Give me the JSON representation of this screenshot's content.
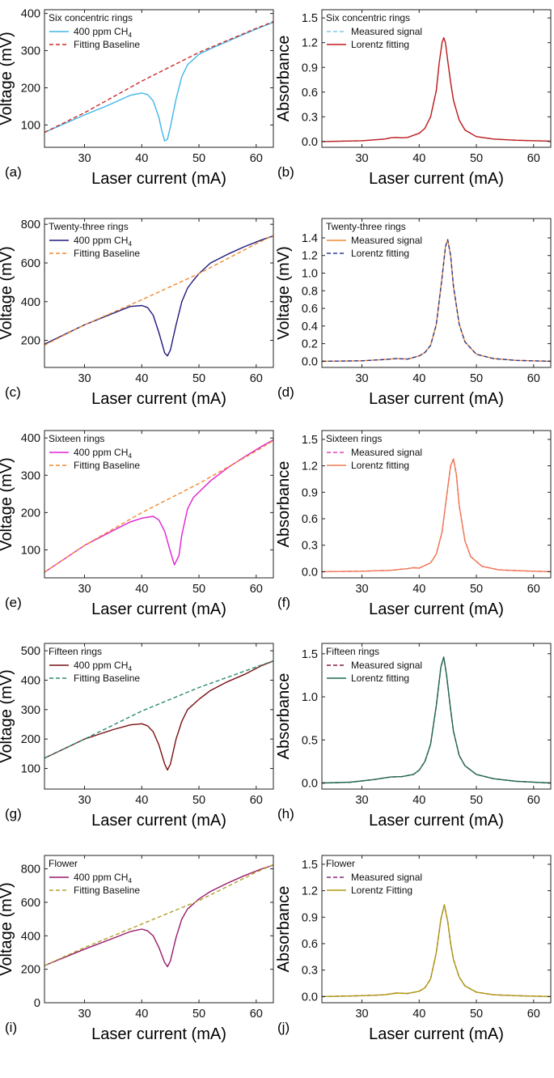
{
  "chart_data": [
    {
      "id": "a",
      "letter": "(a)",
      "type": "line",
      "title": "Six concentric rings",
      "xlabel": "Laser current (mA)",
      "ylabel": "Voltage (mV)",
      "xlim": [
        23,
        63
      ],
      "ylim": [
        40,
        410
      ],
      "xticks": [
        30,
        40,
        50,
        60
      ],
      "yticks": [
        100,
        200,
        300,
        400
      ],
      "series": [
        {
          "name": "400 ppm CH",
          "sub": "4",
          "color": "#3fb7e8",
          "dash": false,
          "x": [
            23,
            30,
            34,
            36,
            38,
            40,
            41,
            42,
            43,
            43.5,
            44,
            44.5,
            45,
            46,
            47,
            48,
            50,
            52,
            55,
            58,
            61,
            63
          ],
          "y": [
            80,
            127,
            152,
            166,
            180,
            186,
            182,
            165,
            120,
            85,
            57,
            62,
            95,
            170,
            230,
            262,
            290,
            305,
            325,
            345,
            364,
            376
          ]
        },
        {
          "name": "Fitting Baseline",
          "color": "#cc2a2a",
          "dash": true,
          "x": [
            23,
            30,
            40,
            50,
            60,
            63
          ],
          "y": [
            80,
            133,
            218,
            295,
            360,
            378
          ]
        }
      ]
    },
    {
      "id": "b",
      "letter": "(b)",
      "type": "line",
      "title": "Six concentric rings",
      "xlabel": "Laser current (mA)",
      "ylabel": "Absorbance",
      "xlim": [
        23,
        63
      ],
      "ylim": [
        -0.07,
        1.6
      ],
      "xticks": [
        30,
        40,
        50,
        60
      ],
      "yticks": [
        0.0,
        0.3,
        0.6,
        0.9,
        1.2,
        1.5
      ],
      "series": [
        {
          "name": "Measured signal",
          "color": "#7fc9ea",
          "dash": true,
          "x": [
            23,
            30,
            34,
            35,
            36,
            37,
            38,
            40,
            41,
            42,
            43,
            43.5,
            44,
            44.3,
            44.6,
            45,
            45.5,
            46,
            47,
            48,
            50,
            53,
            57,
            63
          ],
          "y": [
            0.0,
            0.01,
            0.03,
            0.045,
            0.05,
            0.045,
            0.05,
            0.1,
            0.16,
            0.3,
            0.62,
            0.95,
            1.2,
            1.26,
            1.2,
            0.98,
            0.72,
            0.5,
            0.26,
            0.14,
            0.06,
            0.03,
            0.015,
            0.005
          ]
        },
        {
          "name": "Lorentz fitting",
          "color": "#c11a1a",
          "dash": false,
          "x": [
            23,
            30,
            34,
            35,
            36,
            37,
            38,
            40,
            41,
            42,
            43,
            43.5,
            44,
            44.3,
            44.6,
            45,
            45.5,
            46,
            47,
            48,
            50,
            53,
            57,
            63
          ],
          "y": [
            0.0,
            0.01,
            0.03,
            0.045,
            0.05,
            0.045,
            0.05,
            0.1,
            0.16,
            0.3,
            0.62,
            0.95,
            1.2,
            1.26,
            1.2,
            0.98,
            0.72,
            0.5,
            0.26,
            0.14,
            0.06,
            0.03,
            0.015,
            0.005
          ]
        }
      ]
    },
    {
      "id": "c",
      "letter": "(c)",
      "type": "line",
      "title": "Twenty-three rings",
      "xlabel": "Laser current (mA)",
      "ylabel": "Voltage (mV)",
      "xlim": [
        23,
        63
      ],
      "ylim": [
        60,
        830
      ],
      "xticks": [
        30,
        40,
        50,
        60
      ],
      "yticks": [
        200,
        400,
        600,
        800
      ],
      "series": [
        {
          "name": "400 ppm CH",
          "sub": "4",
          "color": "#1f1a7a",
          "dash": false,
          "x": [
            23,
            30,
            35,
            38,
            40,
            41,
            42,
            43,
            44,
            44.5,
            45,
            46,
            47,
            48,
            49,
            50,
            52,
            55,
            58,
            61,
            63
          ],
          "y": [
            180,
            280,
            340,
            375,
            380,
            370,
            330,
            240,
            135,
            120,
            150,
            280,
            400,
            470,
            510,
            545,
            600,
            645,
            685,
            720,
            740
          ]
        },
        {
          "name": "Fitting Baseline",
          "color": "#f08a30",
          "dash": true,
          "x": [
            23,
            30,
            40,
            50,
            60,
            63
          ],
          "y": [
            175,
            280,
            410,
            545,
            700,
            742
          ]
        }
      ]
    },
    {
      "id": "d",
      "letter": "(d)",
      "type": "line",
      "title": "Twenty-three rings",
      "xlabel": "Laser current (mA)",
      "ylabel": "Voltage (mV)",
      "xlim": [
        23,
        63
      ],
      "ylim": [
        -0.07,
        1.62
      ],
      "xticks": [
        30,
        40,
        50,
        60
      ],
      "yticks": [
        0.0,
        0.2,
        0.4,
        0.6,
        0.8,
        1.0,
        1.2,
        1.4
      ],
      "series": [
        {
          "name": "Measured signal",
          "color": "#f08a30",
          "dash": false,
          "x": [
            23,
            30,
            34,
            36,
            38,
            40,
            41,
            42,
            43,
            44,
            44.6,
            45,
            45.5,
            46,
            47,
            48,
            50,
            53,
            57,
            63
          ],
          "y": [
            0.0,
            0.005,
            0.02,
            0.03,
            0.025,
            0.06,
            0.1,
            0.18,
            0.42,
            0.95,
            1.3,
            1.38,
            1.2,
            0.85,
            0.42,
            0.22,
            0.08,
            0.03,
            0.01,
            0.0
          ]
        },
        {
          "name": "Lorentz fitting",
          "color": "#2a3a9a",
          "dash": true,
          "x": [
            23,
            30,
            34,
            36,
            38,
            40,
            41,
            42,
            43,
            44,
            44.6,
            45,
            45.5,
            46,
            47,
            48,
            50,
            53,
            57,
            63
          ],
          "y": [
            0.0,
            0.005,
            0.02,
            0.03,
            0.025,
            0.06,
            0.1,
            0.18,
            0.42,
            0.95,
            1.3,
            1.38,
            1.2,
            0.85,
            0.42,
            0.22,
            0.08,
            0.03,
            0.01,
            0.0
          ]
        }
      ]
    },
    {
      "id": "e",
      "letter": "(e)",
      "type": "line",
      "title": "Sixteen rings",
      "xlabel": "Laser current (mA)",
      "ylabel": "Voltage (mV)",
      "xlim": [
        23,
        63
      ],
      "ylim": [
        25,
        420
      ],
      "xticks": [
        30,
        40,
        50,
        60
      ],
      "yticks": [
        100,
        200,
        300,
        400
      ],
      "series": [
        {
          "name": "400 ppm CH",
          "sub": "4",
          "color": "#e020d0",
          "dash": false,
          "x": [
            23,
            30,
            35,
            38,
            40,
            42,
            43,
            44,
            45,
            45.7,
            46.5,
            47,
            48,
            49,
            50,
            52,
            55,
            58,
            61,
            63
          ],
          "y": [
            40,
            112,
            152,
            175,
            185,
            190,
            180,
            150,
            95,
            60,
            85,
            140,
            210,
            240,
            255,
            285,
            320,
            350,
            378,
            395
          ]
        },
        {
          "name": "Fitting Baseline",
          "color": "#f08a30",
          "dash": true,
          "x": [
            23,
            30,
            40,
            50,
            60,
            63
          ],
          "y": [
            40,
            112,
            200,
            278,
            365,
            393
          ]
        }
      ]
    },
    {
      "id": "f",
      "letter": "(f)",
      "type": "line",
      "title": "Sixteen rings",
      "xlabel": "Laser current (mA)",
      "ylabel": "Absorbance",
      "xlim": [
        23,
        63
      ],
      "ylim": [
        -0.07,
        1.6
      ],
      "xticks": [
        30,
        40,
        50,
        60
      ],
      "yticks": [
        0.0,
        0.3,
        0.6,
        0.9,
        1.2,
        1.5
      ],
      "series": [
        {
          "name": "Measured signal",
          "color": "#e040c0",
          "dash": true,
          "x": [
            23,
            30,
            35,
            38,
            39,
            40,
            42,
            43,
            44,
            45,
            45.5,
            46,
            46.5,
            47,
            48,
            49,
            51,
            54,
            58,
            63
          ],
          "y": [
            0.0,
            0.005,
            0.015,
            0.035,
            0.045,
            0.04,
            0.1,
            0.2,
            0.45,
            0.95,
            1.2,
            1.28,
            1.1,
            0.75,
            0.35,
            0.17,
            0.06,
            0.02,
            0.01,
            0.0
          ]
        },
        {
          "name": "Lorentz fitting",
          "color": "#f07a50",
          "dash": false,
          "x": [
            23,
            30,
            35,
            38,
            39,
            40,
            42,
            43,
            44,
            45,
            45.5,
            46,
            46.5,
            47,
            48,
            49,
            51,
            54,
            58,
            63
          ],
          "y": [
            0.0,
            0.005,
            0.015,
            0.035,
            0.045,
            0.04,
            0.1,
            0.2,
            0.45,
            0.95,
            1.2,
            1.28,
            1.1,
            0.75,
            0.35,
            0.17,
            0.06,
            0.02,
            0.01,
            0.0
          ]
        }
      ]
    },
    {
      "id": "g",
      "letter": "(g)",
      "type": "line",
      "title": "Fifteen rings",
      "xlabel": "Laser current (mA)",
      "ylabel": "Voltage (mV)",
      "xlim": [
        23,
        63
      ],
      "ylim": [
        30,
        525
      ],
      "xticks": [
        30,
        40,
        50,
        60
      ],
      "yticks": [
        100,
        200,
        300,
        400,
        500
      ],
      "series": [
        {
          "name": "400 ppm CH",
          "sub": "4",
          "color": "#7a1010",
          "dash": false,
          "x": [
            23,
            30,
            35,
            38,
            40,
            41,
            42,
            43,
            44,
            44.5,
            45,
            46,
            47,
            48,
            50,
            52,
            55,
            58,
            61,
            63
          ],
          "y": [
            135,
            200,
            232,
            248,
            252,
            245,
            225,
            180,
            115,
            95,
            115,
            200,
            260,
            300,
            335,
            365,
            395,
            420,
            450,
            465
          ]
        },
        {
          "name": "Fitting Baseline",
          "color": "#2a8a70",
          "dash": true,
          "x": [
            23,
            30,
            40,
            50,
            60,
            63
          ],
          "y": [
            135,
            200,
            295,
            375,
            445,
            466
          ]
        }
      ]
    },
    {
      "id": "h",
      "letter": "(h)",
      "type": "line",
      "title": "Fifteen rings",
      "xlabel": "Laser current (mA)",
      "ylabel": "Absorbance",
      "xlim": [
        23,
        63
      ],
      "ylim": [
        -0.07,
        1.62
      ],
      "xticks": [
        30,
        40,
        50,
        60
      ],
      "yticks": [
        0.0,
        0.5,
        1.0,
        1.5
      ],
      "series": [
        {
          "name": "Measured signal",
          "color": "#8a1a3a",
          "dash": true,
          "x": [
            23,
            28,
            32,
            35,
            37,
            39,
            40,
            41,
            42,
            43,
            43.8,
            44.3,
            44.8,
            45.5,
            46,
            47,
            48,
            50,
            53,
            57,
            63
          ],
          "y": [
            0.0,
            0.01,
            0.04,
            0.07,
            0.075,
            0.1,
            0.15,
            0.25,
            0.45,
            0.9,
            1.35,
            1.46,
            1.25,
            0.85,
            0.6,
            0.32,
            0.2,
            0.1,
            0.05,
            0.02,
            0.0
          ]
        },
        {
          "name": "Lorentz fitting",
          "color": "#1f6a55",
          "dash": false,
          "x": [
            23,
            28,
            32,
            35,
            37,
            39,
            40,
            41,
            42,
            43,
            43.8,
            44.3,
            44.8,
            45.5,
            46,
            47,
            48,
            50,
            53,
            57,
            63
          ],
          "y": [
            0.0,
            0.01,
            0.04,
            0.07,
            0.075,
            0.1,
            0.15,
            0.25,
            0.45,
            0.9,
            1.35,
            1.46,
            1.25,
            0.85,
            0.6,
            0.32,
            0.2,
            0.1,
            0.05,
            0.02,
            0.0
          ]
        }
      ]
    },
    {
      "id": "i",
      "letter": "(i)",
      "type": "line",
      "title": "Flower",
      "xlabel": "Laser current (mA)",
      "ylabel": "Voltage (mV)",
      "xlim": [
        23,
        63
      ],
      "ylim": [
        0,
        880
      ],
      "xticks": [
        30,
        40,
        50,
        60
      ],
      "yticks": [
        0,
        200,
        400,
        600,
        800
      ],
      "series": [
        {
          "name": "400 ppm CH",
          "sub": "4",
          "color": "#9a1a6a",
          "dash": false,
          "x": [
            23,
            30,
            35,
            38,
            40,
            41,
            42,
            43,
            44,
            44.5,
            45,
            46,
            47,
            48,
            50,
            52,
            55,
            58,
            61,
            63
          ],
          "y": [
            222,
            320,
            385,
            425,
            440,
            430,
            400,
            330,
            240,
            215,
            250,
            390,
            500,
            560,
            620,
            665,
            715,
            760,
            800,
            822
          ]
        },
        {
          "name": "Fitting Baseline",
          "color": "#b0a030",
          "dash": true,
          "x": [
            23,
            30,
            40,
            50,
            60,
            63
          ],
          "y": [
            222,
            330,
            470,
            610,
            780,
            825
          ]
        }
      ]
    },
    {
      "id": "j",
      "letter": "(j)",
      "type": "line",
      "title": "Flower",
      "xlabel": "Laser current (mA)",
      "ylabel": "Absorbance",
      "xlim": [
        23,
        63
      ],
      "ylim": [
        -0.07,
        1.6
      ],
      "xticks": [
        30,
        40,
        50,
        60
      ],
      "yticks": [
        0.0,
        0.3,
        0.6,
        0.9,
        1.2,
        1.5
      ],
      "series": [
        {
          "name": "Measured signal",
          "color": "#8a2a7a",
          "dash": true,
          "x": [
            23,
            30,
            34,
            36,
            38,
            40,
            41,
            42,
            43,
            43.8,
            44.4,
            45,
            45.5,
            46,
            47,
            48,
            50,
            53,
            57,
            63
          ],
          "y": [
            0.0,
            0.01,
            0.02,
            0.04,
            0.035,
            0.06,
            0.1,
            0.2,
            0.5,
            0.88,
            1.04,
            0.85,
            0.6,
            0.42,
            0.22,
            0.12,
            0.05,
            0.02,
            0.01,
            0.0
          ]
        },
        {
          "name": "Lorentz Fitting",
          "color": "#b09a10",
          "dash": false,
          "x": [
            23,
            30,
            34,
            36,
            38,
            40,
            41,
            42,
            43,
            43.8,
            44.4,
            45,
            45.5,
            46,
            47,
            48,
            50,
            53,
            57,
            63
          ],
          "y": [
            0.0,
            0.01,
            0.02,
            0.04,
            0.035,
            0.06,
            0.1,
            0.2,
            0.5,
            0.88,
            1.04,
            0.85,
            0.6,
            0.42,
            0.22,
            0.12,
            0.05,
            0.02,
            0.01,
            0.0
          ]
        }
      ]
    }
  ]
}
